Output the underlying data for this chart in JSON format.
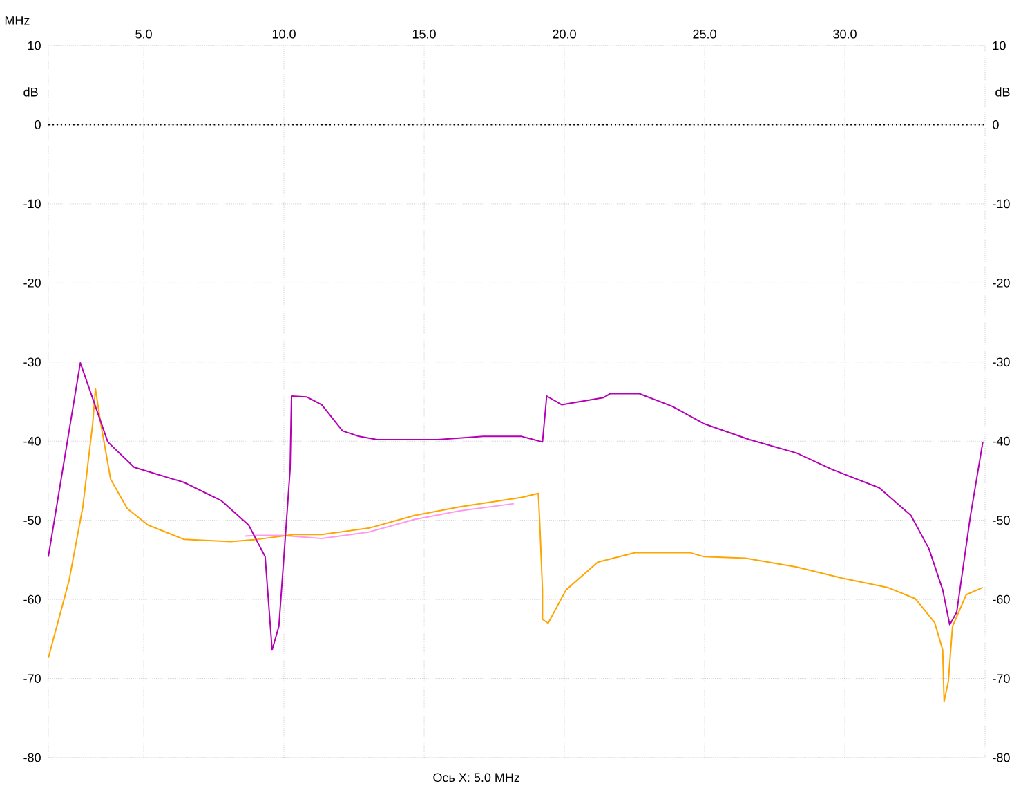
{
  "chart_data": {
    "type": "line",
    "xlabel": "MHz",
    "ylabel": "dB",
    "y2label": "dB",
    "xlim": [
      1.6,
      35
    ],
    "xticks": [
      {
        "value": 5,
        "label": "5.0"
      },
      {
        "value": 10,
        "label": "10.0"
      },
      {
        "value": 15,
        "label": "15.0"
      },
      {
        "value": 20,
        "label": "20.0"
      },
      {
        "value": 25,
        "label": "25.0"
      },
      {
        "value": 30,
        "label": "30.0"
      }
    ],
    "ylim": [
      -80,
      10
    ],
    "yticks": [
      -80,
      -70,
      -60,
      -50,
      -40,
      -30,
      -20,
      -10,
      0,
      10
    ],
    "y2lim": [
      -80,
      10
    ],
    "y2ticks": [
      -80,
      -70,
      -60,
      -50,
      -40,
      -30,
      -20,
      -10,
      0,
      10
    ],
    "grid": true,
    "ref_lines": [
      {
        "axis": "y",
        "value": 0,
        "color": "#000000",
        "line_style": "dotted"
      }
    ],
    "annotations": [
      "Ось X: 5.0 MHz"
    ],
    "series": [
      {
        "color": "#ff99ee",
        "x": [
          8.6,
          9.08,
          9.9,
          11.35,
          13.02,
          14.65,
          16.27,
          18.2
        ],
        "values": [
          -52.0,
          -51.9,
          -51.9,
          -52.3,
          -51.5,
          -49.9,
          -48.8,
          -47.9
        ]
      },
      {
        "color": "#ffa500",
        "x": [
          1.6,
          2.34,
          2.83,
          3.18,
          3.28,
          3.47,
          3.82,
          4.41,
          5.15,
          6.43,
          8.1,
          9.08,
          10.36,
          11.35,
          13.02,
          14.65,
          16.27,
          18.48,
          19.07,
          19.12,
          19.22,
          19.22,
          19.42,
          20.06,
          21.19,
          22.52,
          24.49,
          24.98,
          26.46,
          28.28,
          29.9,
          31.53,
          32.51,
          33.2,
          33.49,
          33.54,
          33.69,
          33.84,
          34.33,
          34.92
        ],
        "values": [
          -67.4,
          -57.6,
          -48.3,
          -37.8,
          -33.4,
          -37.8,
          -44.8,
          -48.5,
          -50.6,
          -52.4,
          -52.7,
          -52.4,
          -51.8,
          -51.8,
          -51.0,
          -49.4,
          -48.3,
          -47.1,
          -46.6,
          -50.1,
          -58.8,
          -62.5,
          -63.0,
          -58.8,
          -55.3,
          -54.1,
          -54.1,
          -54.6,
          -54.8,
          -55.9,
          -57.3,
          -58.5,
          -59.9,
          -62.9,
          -66.4,
          -72.9,
          -70.4,
          -63.4,
          -59.4,
          -58.5
        ]
      },
      {
        "color": "#b400b4",
        "x": [
          1.6,
          2.74,
          3.72,
          4.66,
          6.43,
          7.76,
          8.74,
          9.33,
          9.58,
          9.82,
          10.02,
          10.22,
          10.27,
          10.81,
          11.35,
          12.09,
          12.68,
          13.33,
          15.48,
          17.11,
          18.48,
          19.22,
          19.37,
          19.91,
          21.39,
          21.63,
          22.67,
          23.85,
          24.98,
          26.6,
          28.28,
          29.56,
          31.23,
          32.36,
          33.0,
          33.49,
          33.74,
          33.99,
          34.48,
          34.92
        ],
        "values": [
          -54.6,
          -30.1,
          -40.1,
          -43.3,
          -45.2,
          -47.5,
          -50.6,
          -54.6,
          -66.4,
          -63.4,
          -53.6,
          -43.6,
          -34.3,
          -34.4,
          -35.4,
          -38.7,
          -39.4,
          -39.8,
          -39.8,
          -39.4,
          -39.4,
          -40.1,
          -34.3,
          -35.4,
          -34.5,
          -34.0,
          -34.0,
          -35.6,
          -37.8,
          -39.8,
          -41.5,
          -43.6,
          -45.9,
          -49.4,
          -53.6,
          -58.8,
          -63.2,
          -61.6,
          -49.4,
          -40.1
        ]
      }
    ]
  }
}
